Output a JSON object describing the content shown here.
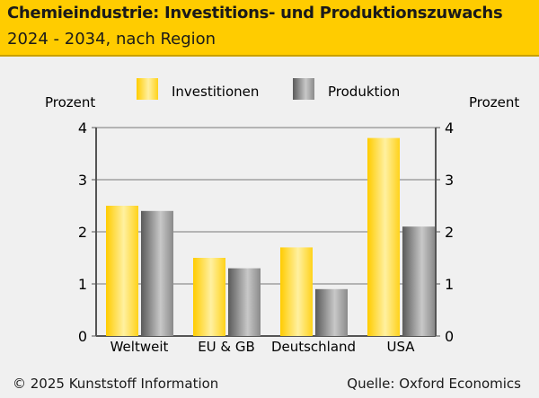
{
  "header": {
    "title": "Chemieindustrie: Investitions- und Produktionszuwachs",
    "subtitle": "2024 - 2034, nach Region"
  },
  "footer": {
    "copyright": "© 2025 Kunststoff Information",
    "source": "Quelle: Oxford Economics"
  },
  "colors": {
    "header": "#ffcc00",
    "investitionen": "#ffd21a",
    "produktion": "#8c8c8c"
  },
  "chart_data": {
    "type": "bar",
    "title": "Chemieindustrie: Investitions- und Produktionszuwachs",
    "subtitle": "2024 - 2034, nach Region",
    "ylabel": "Prozent",
    "ylabel_right": "Prozent",
    "categories": [
      "Weltweit",
      "EU & GB",
      "Deutschland",
      "USA"
    ],
    "series": [
      {
        "name": "Investitionen",
        "values": [
          2.5,
          1.5,
          1.7,
          3.8
        ]
      },
      {
        "name": "Produktion",
        "values": [
          2.4,
          1.3,
          0.9,
          2.1
        ]
      }
    ],
    "ylim": [
      0,
      4
    ],
    "yticks": [
      "0",
      "1",
      "2",
      "3",
      "4"
    ],
    "grid": true,
    "legend": "top"
  }
}
